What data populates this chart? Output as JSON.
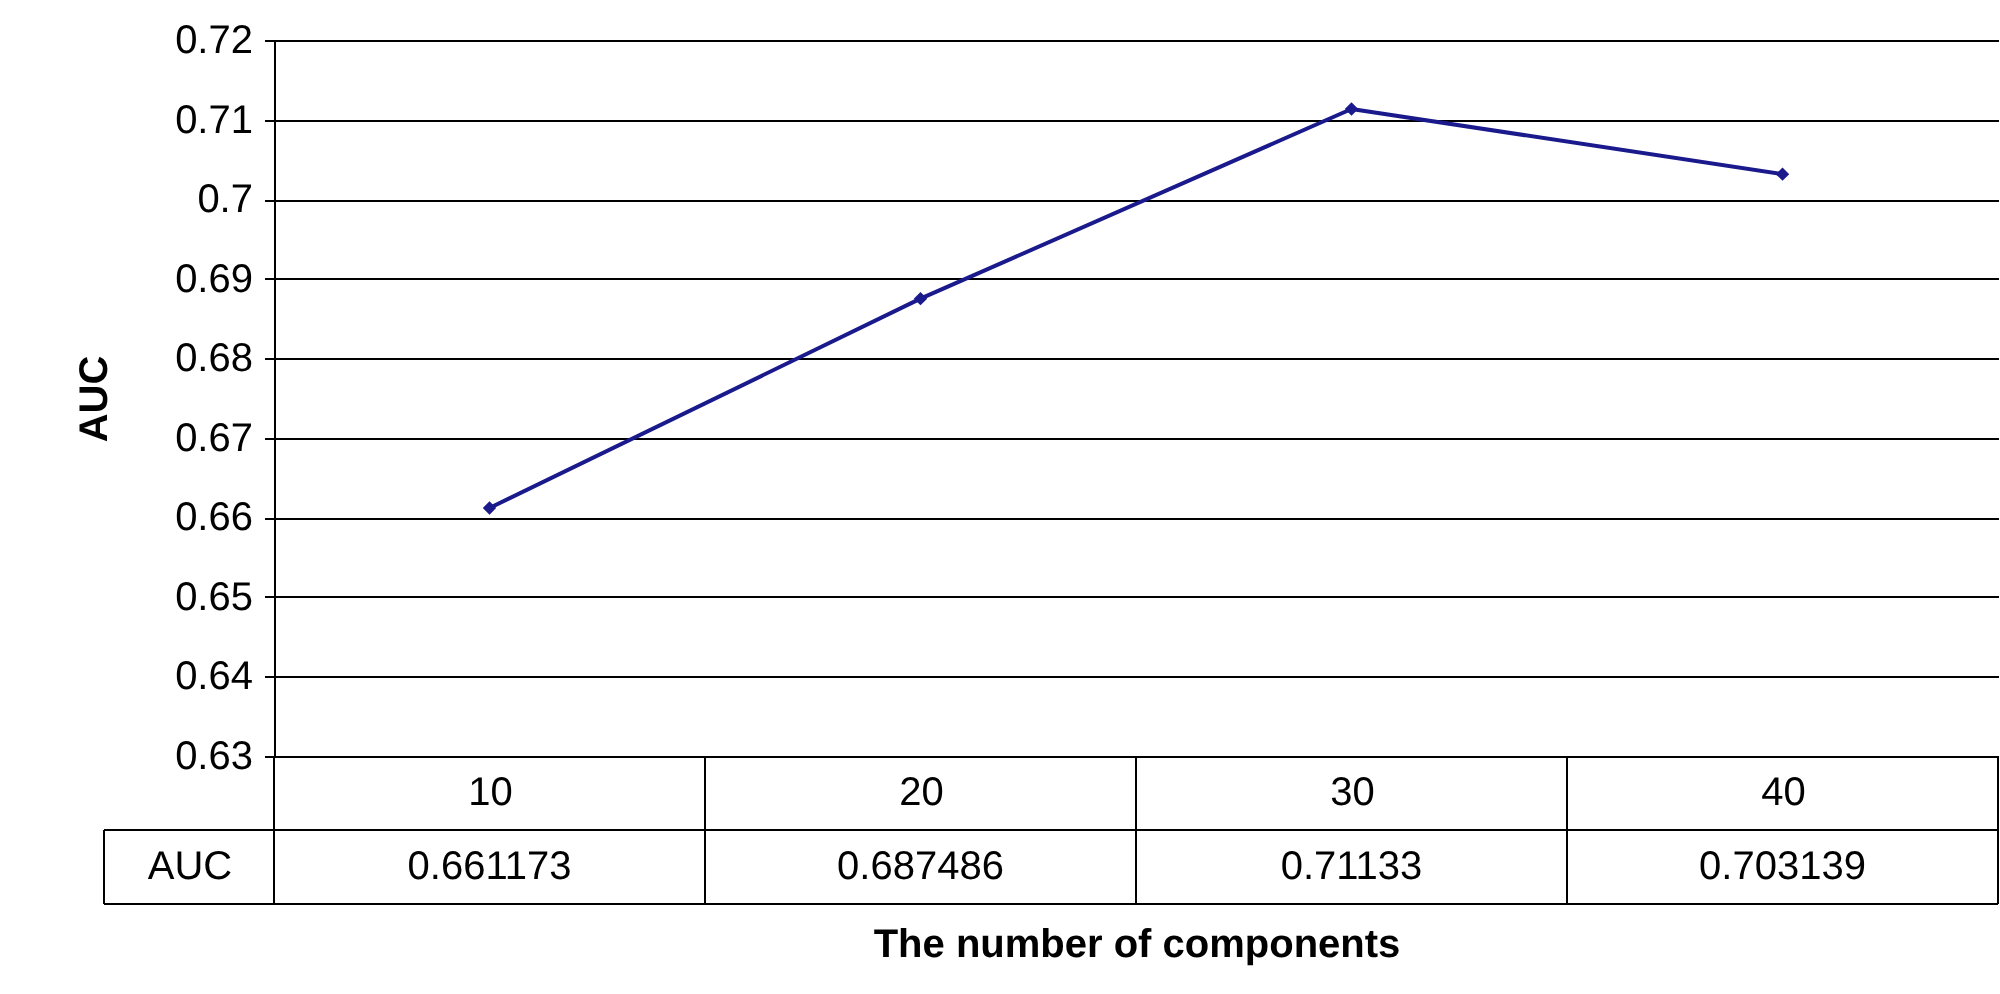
{
  "chart_data": {
    "type": "line",
    "xlabel": "The number of components",
    "ylabel": "AUC",
    "categories": [
      "10",
      "20",
      "30",
      "40"
    ],
    "series": [
      {
        "name": "AUC",
        "color": "#1a1a8c",
        "values": [
          0.661173,
          0.687486,
          0.71133,
          0.703139
        ]
      }
    ],
    "ylim": [
      0.63,
      0.72
    ],
    "yticks": [
      0.63,
      0.64,
      0.65,
      0.66,
      0.67,
      0.68,
      0.69,
      0.7,
      0.71,
      0.72
    ],
    "grid": "y",
    "marker": "diamond",
    "line_style": "solid",
    "data_labels": true
  }
}
